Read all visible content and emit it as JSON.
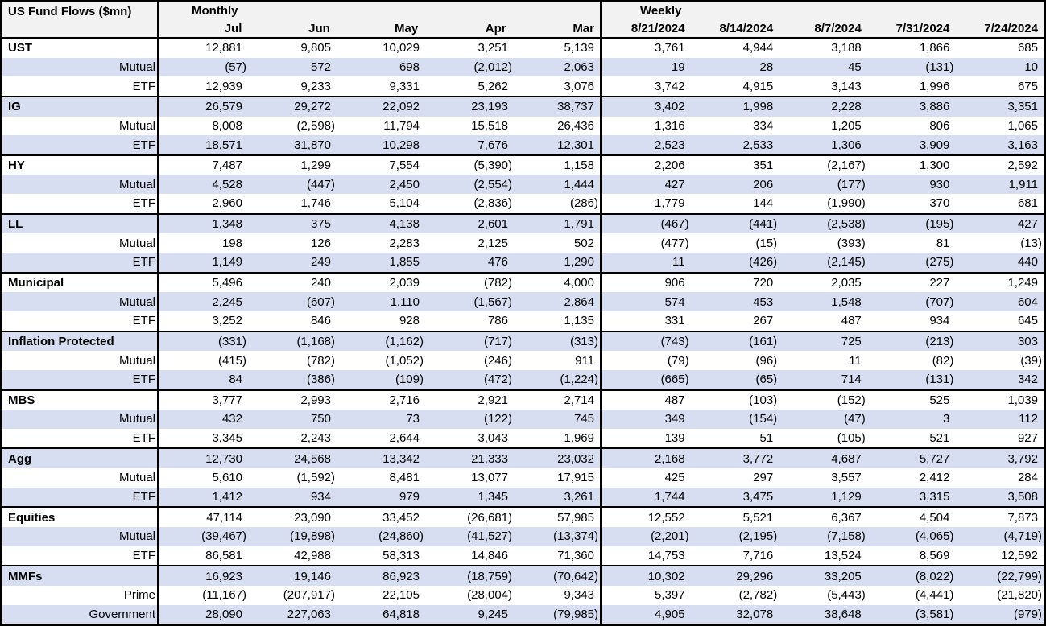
{
  "table": {
    "title": "US Fund Flows ($mn)",
    "monthly_label": "Monthly",
    "weekly_label": "Weekly",
    "monthly_columns": [
      "Jul",
      "Jun",
      "May",
      "Apr",
      "Mar"
    ],
    "weekly_columns": [
      "8/21/2024",
      "8/14/2024",
      "8/7/2024",
      "7/31/2024",
      "7/24/2024"
    ],
    "rows": [
      {
        "label": "UST",
        "type": "category",
        "monthly": [
          "12,881",
          "9,805",
          "10,029",
          "3,251",
          "5,139"
        ],
        "weekly": [
          "3,761",
          "4,944",
          "3,188",
          "1,866",
          "685"
        ]
      },
      {
        "label": "Mutual",
        "type": "sub",
        "monthly": [
          "(57)",
          "572",
          "698",
          "(2,012)",
          "2,063"
        ],
        "weekly": [
          "19",
          "28",
          "45",
          "(131)",
          "10"
        ]
      },
      {
        "label": "ETF",
        "type": "sub",
        "monthly": [
          "12,939",
          "9,233",
          "9,331",
          "5,262",
          "3,076"
        ],
        "weekly": [
          "3,742",
          "4,915",
          "3,143",
          "1,996",
          "675"
        ]
      },
      {
        "label": "IG",
        "type": "category",
        "monthly": [
          "26,579",
          "29,272",
          "22,092",
          "23,193",
          "38,737"
        ],
        "weekly": [
          "3,402",
          "1,998",
          "2,228",
          "3,886",
          "3,351"
        ]
      },
      {
        "label": "Mutual",
        "type": "sub",
        "monthly": [
          "8,008",
          "(2,598)",
          "11,794",
          "15,518",
          "26,436"
        ],
        "weekly": [
          "1,316",
          "334",
          "1,205",
          "806",
          "1,065"
        ]
      },
      {
        "label": "ETF",
        "type": "sub",
        "monthly": [
          "18,571",
          "31,870",
          "10,298",
          "7,676",
          "12,301"
        ],
        "weekly": [
          "2,523",
          "2,533",
          "1,306",
          "3,909",
          "3,163"
        ]
      },
      {
        "label": "HY",
        "type": "category",
        "monthly": [
          "7,487",
          "1,299",
          "7,554",
          "(5,390)",
          "1,158"
        ],
        "weekly": [
          "2,206",
          "351",
          "(2,167)",
          "1,300",
          "2,592"
        ]
      },
      {
        "label": "Mutual",
        "type": "sub",
        "monthly": [
          "4,528",
          "(447)",
          "2,450",
          "(2,554)",
          "1,444"
        ],
        "weekly": [
          "427",
          "206",
          "(177)",
          "930",
          "1,911"
        ]
      },
      {
        "label": "ETF",
        "type": "sub",
        "monthly": [
          "2,960",
          "1,746",
          "5,104",
          "(2,836)",
          "(286)"
        ],
        "weekly": [
          "1,779",
          "144",
          "(1,990)",
          "370",
          "681"
        ]
      },
      {
        "label": "LL",
        "type": "category",
        "monthly": [
          "1,348",
          "375",
          "4,138",
          "2,601",
          "1,791"
        ],
        "weekly": [
          "(467)",
          "(441)",
          "(2,538)",
          "(195)",
          "427"
        ]
      },
      {
        "label": "Mutual",
        "type": "sub",
        "monthly": [
          "198",
          "126",
          "2,283",
          "2,125",
          "502"
        ],
        "weekly": [
          "(477)",
          "(15)",
          "(393)",
          "81",
          "(13)"
        ]
      },
      {
        "label": "ETF",
        "type": "sub",
        "monthly": [
          "1,149",
          "249",
          "1,855",
          "476",
          "1,290"
        ],
        "weekly": [
          "11",
          "(426)",
          "(2,145)",
          "(275)",
          "440"
        ]
      },
      {
        "label": "Municipal",
        "type": "category",
        "monthly": [
          "5,496",
          "240",
          "2,039",
          "(782)",
          "4,000"
        ],
        "weekly": [
          "906",
          "720",
          "2,035",
          "227",
          "1,249"
        ]
      },
      {
        "label": "Mutual",
        "type": "sub",
        "monthly": [
          "2,245",
          "(607)",
          "1,110",
          "(1,567)",
          "2,864"
        ],
        "weekly": [
          "574",
          "453",
          "1,548",
          "(707)",
          "604"
        ]
      },
      {
        "label": "ETF",
        "type": "sub",
        "monthly": [
          "3,252",
          "846",
          "928",
          "786",
          "1,135"
        ],
        "weekly": [
          "331",
          "267",
          "487",
          "934",
          "645"
        ]
      },
      {
        "label": "Inflation Protected",
        "type": "category",
        "monthly": [
          "(331)",
          "(1,168)",
          "(1,162)",
          "(717)",
          "(313)"
        ],
        "weekly": [
          "(743)",
          "(161)",
          "725",
          "(213)",
          "303"
        ]
      },
      {
        "label": "Mutual",
        "type": "sub",
        "monthly": [
          "(415)",
          "(782)",
          "(1,052)",
          "(246)",
          "911"
        ],
        "weekly": [
          "(79)",
          "(96)",
          "11",
          "(82)",
          "(39)"
        ]
      },
      {
        "label": "ETF",
        "type": "sub",
        "monthly": [
          "84",
          "(386)",
          "(109)",
          "(472)",
          "(1,224)"
        ],
        "weekly": [
          "(665)",
          "(65)",
          "714",
          "(131)",
          "342"
        ]
      },
      {
        "label": "MBS",
        "type": "category",
        "monthly": [
          "3,777",
          "2,993",
          "2,716",
          "2,921",
          "2,714"
        ],
        "weekly": [
          "487",
          "(103)",
          "(152)",
          "525",
          "1,039"
        ]
      },
      {
        "label": "Mutual",
        "type": "sub",
        "monthly": [
          "432",
          "750",
          "73",
          "(122)",
          "745"
        ],
        "weekly": [
          "349",
          "(154)",
          "(47)",
          "3",
          "112"
        ]
      },
      {
        "label": "ETF",
        "type": "sub",
        "monthly": [
          "3,345",
          "2,243",
          "2,644",
          "3,043",
          "1,969"
        ],
        "weekly": [
          "139",
          "51",
          "(105)",
          "521",
          "927"
        ]
      },
      {
        "label": "Agg",
        "type": "category",
        "monthly": [
          "12,730",
          "24,568",
          "13,342",
          "21,333",
          "23,032"
        ],
        "weekly": [
          "2,168",
          "3,772",
          "4,687",
          "5,727",
          "3,792"
        ]
      },
      {
        "label": "Mutual",
        "type": "sub",
        "monthly": [
          "5,610",
          "(1,592)",
          "8,481",
          "13,077",
          "17,915"
        ],
        "weekly": [
          "425",
          "297",
          "3,557",
          "2,412",
          "284"
        ]
      },
      {
        "label": "ETF",
        "type": "sub",
        "monthly": [
          "1,412",
          "934",
          "979",
          "1,345",
          "3,261"
        ],
        "weekly": [
          "1,744",
          "3,475",
          "1,129",
          "3,315",
          "3,508"
        ]
      },
      {
        "label": "Equities",
        "type": "category",
        "monthly": [
          "47,114",
          "23,090",
          "33,452",
          "(26,681)",
          "57,985"
        ],
        "weekly": [
          "12,552",
          "5,521",
          "6,367",
          "4,504",
          "7,873"
        ]
      },
      {
        "label": "Mutual",
        "type": "sub",
        "monthly": [
          "(39,467)",
          "(19,898)",
          "(24,860)",
          "(41,527)",
          "(13,374)"
        ],
        "weekly": [
          "(2,201)",
          "(2,195)",
          "(7,158)",
          "(4,065)",
          "(4,719)"
        ]
      },
      {
        "label": "ETF",
        "type": "sub",
        "monthly": [
          "86,581",
          "42,988",
          "58,313",
          "14,846",
          "71,360"
        ],
        "weekly": [
          "14,753",
          "7,716",
          "13,524",
          "8,569",
          "12,592"
        ]
      },
      {
        "label": "MMFs",
        "type": "category",
        "monthly": [
          "16,923",
          "19,146",
          "86,923",
          "(18,759)",
          "(70,642)"
        ],
        "weekly": [
          "10,302",
          "29,296",
          "33,205",
          "(8,022)",
          "(22,799)"
        ]
      },
      {
        "label": "Prime",
        "type": "sub",
        "monthly": [
          "(11,167)",
          "(207,917)",
          "22,105",
          "(28,004)",
          "9,343"
        ],
        "weekly": [
          "5,397",
          "(2,782)",
          "(5,443)",
          "(4,441)",
          "(21,820)"
        ]
      },
      {
        "label": "Government",
        "type": "sub",
        "monthly": [
          "28,090",
          "227,063",
          "64,818",
          "9,245",
          "(79,985)"
        ],
        "weekly": [
          "4,905",
          "32,078",
          "38,648",
          "(3,581)",
          "(979)"
        ]
      }
    ]
  },
  "colors": {
    "row_stripe": "#D7DEF1",
    "header_bg": "#F2F2F2",
    "border": "#000000",
    "text": "#000000"
  }
}
